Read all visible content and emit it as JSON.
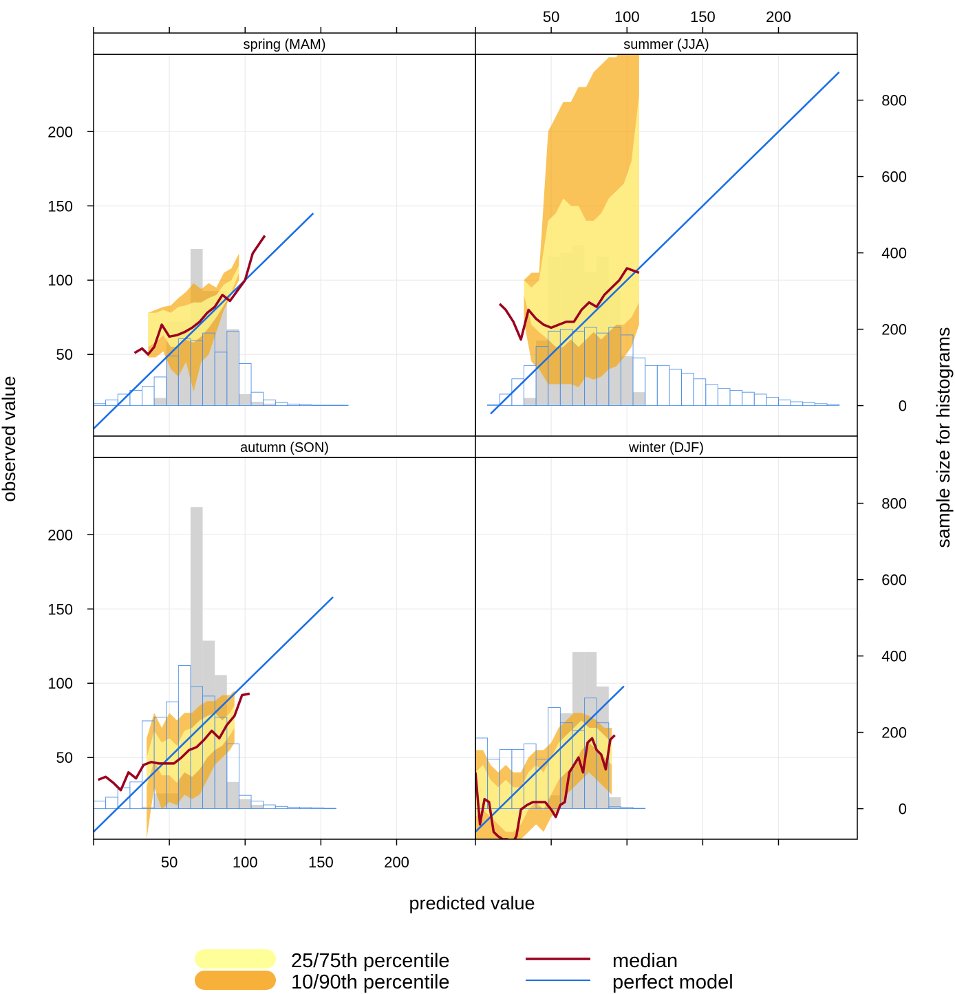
{
  "chart_data": {
    "type": "area",
    "xlabel": "predicted value",
    "ylabel": "observed value",
    "y2label": "sample size for histograms",
    "xlim": [
      0,
      252
    ],
    "ylim": [
      -5,
      252
    ],
    "y2lim": [
      -80,
      920
    ],
    "x_ticks": [
      50,
      100,
      150,
      200
    ],
    "y_ticks": [
      50,
      100,
      150,
      200
    ],
    "y2_ticks": [
      0,
      200,
      400,
      600,
      800
    ],
    "grid": true,
    "legend_position": "bottom",
    "colors": {
      "q25_75": "#ffff99",
      "q10_90": "#f7a300",
      "median": "#9b0020",
      "perfect_model": "#1a6fe6",
      "hist_observed": "#d3d3d3",
      "hist_predicted": "#4d8fe6"
    },
    "legend": [
      {
        "key": "q25_75",
        "label": "25/75th percentile"
      },
      {
        "key": "q10_90",
        "label": "10/90th percentile"
      },
      {
        "key": "median",
        "label": "median"
      },
      {
        "key": "perfect_model",
        "label": "perfect model"
      }
    ],
    "panels": [
      {
        "name": "spring (MAM)",
        "perfect_model": [
          0,
          145
        ],
        "bin_width": 8,
        "hist_observed": [
          [
            40,
            20
          ],
          [
            48,
            220
          ],
          [
            56,
            220
          ],
          [
            64,
            410
          ],
          [
            72,
            300
          ],
          [
            80,
            300
          ],
          [
            88,
            200
          ],
          [
            96,
            30
          ],
          [
            104,
            10
          ],
          [
            112,
            5
          ]
        ],
        "hist_predicted": [
          [
            0,
            5
          ],
          [
            8,
            15
          ],
          [
            16,
            30
          ],
          [
            24,
            40
          ],
          [
            32,
            50
          ],
          [
            40,
            75
          ],
          [
            48,
            130
          ],
          [
            56,
            175
          ],
          [
            64,
            170
          ],
          [
            72,
            190
          ],
          [
            80,
            140
          ],
          [
            88,
            195
          ],
          [
            96,
            110
          ],
          [
            104,
            35
          ],
          [
            112,
            15
          ],
          [
            120,
            8
          ],
          [
            128,
            4
          ],
          [
            136,
            2
          ],
          [
            144,
            1
          ],
          [
            152,
            1
          ],
          [
            160,
            1
          ],
          [
            168,
            0
          ],
          [
            176,
            0
          ],
          [
            184,
            0
          ],
          [
            192,
            0
          ],
          [
            200,
            0
          ],
          [
            208,
            0
          ],
          [
            216,
            0
          ],
          [
            224,
            0
          ],
          [
            232,
            0
          ]
        ],
        "bands": {
          "x": [
            36,
            41,
            46,
            51,
            56,
            61,
            66,
            71,
            76,
            81,
            86,
            91,
            96
          ],
          "q10": [
            48,
            48,
            52,
            40,
            35,
            45,
            25,
            45,
            50,
            65,
            80,
            90,
            100
          ],
          "q25": [
            55,
            58,
            63,
            55,
            55,
            60,
            58,
            62,
            68,
            75,
            83,
            92,
            105
          ],
          "q75": [
            78,
            78,
            80,
            78,
            82,
            83,
            85,
            85,
            88,
            90,
            97,
            100,
            110
          ],
          "q90": [
            78,
            80,
            82,
            83,
            88,
            92,
            98,
            94,
            98,
            95,
            105,
            108,
            118
          ]
        },
        "median": {
          "x": [
            27,
            32,
            36,
            40,
            45,
            50,
            55,
            60,
            65,
            70,
            75,
            80,
            85,
            90,
            95,
            100,
            105,
            113
          ],
          "y": [
            51,
            54,
            50,
            55,
            70,
            62,
            63,
            65,
            68,
            72,
            78,
            82,
            90,
            86,
            93,
            100,
            118,
            130
          ]
        }
      },
      {
        "name": "summer (JJA)",
        "perfect_model": [
          10,
          240
        ],
        "bin_width": 8,
        "hist_observed": [
          [
            32,
            20
          ],
          [
            40,
            170
          ],
          [
            48,
            390
          ],
          [
            56,
            400
          ],
          [
            64,
            420
          ],
          [
            72,
            350
          ],
          [
            80,
            390
          ],
          [
            88,
            300
          ],
          [
            96,
            130
          ],
          [
            104,
            35
          ]
        ],
        "hist_predicted": [
          [
            0,
            0
          ],
          [
            8,
            2
          ],
          [
            16,
            30
          ],
          [
            24,
            70
          ],
          [
            32,
            105
          ],
          [
            40,
            155
          ],
          [
            48,
            195
          ],
          [
            56,
            200
          ],
          [
            64,
            195
          ],
          [
            72,
            205
          ],
          [
            80,
            190
          ],
          [
            88,
            205
          ],
          [
            96,
            185
          ],
          [
            104,
            125
          ],
          [
            112,
            105
          ],
          [
            120,
            105
          ],
          [
            128,
            95
          ],
          [
            136,
            85
          ],
          [
            144,
            70
          ],
          [
            152,
            55
          ],
          [
            160,
            45
          ],
          [
            168,
            40
          ],
          [
            176,
            35
          ],
          [
            184,
            30
          ],
          [
            192,
            22
          ],
          [
            200,
            15
          ],
          [
            208,
            10
          ],
          [
            216,
            8
          ],
          [
            224,
            5
          ],
          [
            232,
            3
          ]
        ],
        "bands": {
          "x": [
            32,
            37,
            42,
            48,
            53,
            58,
            63,
            68,
            73,
            78,
            83,
            88,
            93,
            98,
            103,
            108
          ],
          "q10": [
            72,
            45,
            40,
            30,
            30,
            30,
            30,
            28,
            35,
            33,
            35,
            40,
            42,
            48,
            55,
            70
          ],
          "q25": [
            90,
            70,
            65,
            60,
            55,
            55,
            60,
            55,
            60,
            65,
            60,
            65,
            70,
            70,
            75,
            85
          ],
          "q75": [
            100,
            95,
            100,
            140,
            145,
            155,
            150,
            150,
            140,
            140,
            145,
            155,
            160,
            165,
            180,
            225
          ],
          "q90": [
            100,
            105,
            105,
            200,
            210,
            220,
            220,
            230,
            230,
            240,
            245,
            250,
            250,
            260,
            320,
            355
          ]
        },
        "median": {
          "x": [
            16,
            20,
            25,
            30,
            35,
            40,
            45,
            50,
            55,
            60,
            65,
            70,
            75,
            80,
            85,
            90,
            95,
            100,
            108
          ],
          "y": [
            84,
            80,
            72,
            60,
            80,
            74,
            70,
            68,
            70,
            72,
            72,
            80,
            85,
            82,
            90,
            95,
            100,
            108,
            105
          ]
        }
      },
      {
        "name": "autumn (SON)",
        "perfect_model": [
          0,
          158
        ],
        "bin_width": 8,
        "hist_observed": [
          [
            32,
            5
          ],
          [
            40,
            40
          ],
          [
            48,
            40
          ],
          [
            56,
            125
          ],
          [
            64,
            790
          ],
          [
            72,
            440
          ],
          [
            80,
            350
          ],
          [
            88,
            70
          ],
          [
            96,
            25
          ],
          [
            104,
            10
          ]
        ],
        "hist_predicted": [
          [
            0,
            20
          ],
          [
            8,
            30
          ],
          [
            16,
            55
          ],
          [
            24,
            70
          ],
          [
            32,
            230
          ],
          [
            40,
            240
          ],
          [
            48,
            280
          ],
          [
            56,
            375
          ],
          [
            64,
            320
          ],
          [
            72,
            295
          ],
          [
            80,
            240
          ],
          [
            88,
            170
          ],
          [
            96,
            35
          ],
          [
            104,
            20
          ],
          [
            112,
            10
          ],
          [
            120,
            6
          ],
          [
            128,
            4
          ],
          [
            136,
            3
          ],
          [
            144,
            2
          ],
          [
            152,
            1
          ],
          [
            160,
            0
          ],
          [
            168,
            0
          ],
          [
            176,
            0
          ],
          [
            184,
            0
          ],
          [
            192,
            0
          ],
          [
            200,
            0
          ],
          [
            208,
            0
          ],
          [
            216,
            0
          ],
          [
            224,
            0
          ],
          [
            232,
            0
          ]
        ],
        "bands": {
          "x": [
            35,
            40,
            45,
            50,
            55,
            60,
            65,
            70,
            75,
            80,
            85,
            90,
            93
          ],
          "q10": [
            -5,
            30,
            15,
            20,
            18,
            25,
            22,
            25,
            35,
            45,
            50,
            55,
            60
          ],
          "q25": [
            30,
            48,
            38,
            38,
            33,
            40,
            37,
            42,
            50,
            55,
            58,
            65,
            70
          ],
          "q75": [
            50,
            68,
            60,
            63,
            58,
            68,
            70,
            75,
            78,
            80,
            75,
            80,
            85
          ],
          "q90": [
            63,
            80,
            70,
            80,
            75,
            80,
            80,
            85,
            88,
            88,
            92,
            92,
            95
          ]
        },
        "median": {
          "x": [
            3,
            8,
            13,
            18,
            23,
            28,
            33,
            38,
            43,
            48,
            53,
            58,
            63,
            68,
            73,
            78,
            83,
            88,
            93,
            98,
            103
          ],
          "y": [
            35,
            37,
            33,
            28,
            40,
            36,
            45,
            47,
            46,
            46,
            46,
            50,
            55,
            57,
            62,
            68,
            63,
            72,
            78,
            92,
            93
          ]
        }
      },
      {
        "name": "winter (DJF)",
        "perfect_model": [
          0,
          98
        ],
        "bin_width": 8,
        "hist_observed": [
          [
            40,
            5
          ],
          [
            48,
            35
          ],
          [
            56,
            250
          ],
          [
            64,
            410
          ],
          [
            72,
            410
          ],
          [
            80,
            320
          ],
          [
            88,
            30
          ],
          [
            96,
            2
          ]
        ],
        "hist_predicted": [
          [
            0,
            185
          ],
          [
            8,
            130
          ],
          [
            16,
            155
          ],
          [
            24,
            155
          ],
          [
            32,
            170
          ],
          [
            40,
            130
          ],
          [
            48,
            265
          ],
          [
            56,
            225
          ],
          [
            64,
            205
          ],
          [
            72,
            290
          ],
          [
            80,
            225
          ],
          [
            88,
            5
          ],
          [
            96,
            3
          ],
          [
            104,
            1
          ],
          [
            112,
            0
          ],
          [
            120,
            0
          ],
          [
            128,
            0
          ],
          [
            136,
            0
          ],
          [
            144,
            0
          ],
          [
            152,
            0
          ],
          [
            160,
            0
          ],
          [
            168,
            0
          ],
          [
            176,
            0
          ],
          [
            184,
            0
          ],
          [
            192,
            0
          ],
          [
            200,
            0
          ],
          [
            208,
            0
          ],
          [
            216,
            0
          ],
          [
            224,
            0
          ],
          [
            232,
            0
          ]
        ],
        "bands": {
          "x": [
            0,
            5,
            10,
            15,
            20,
            25,
            30,
            35,
            40,
            45,
            50,
            55,
            60,
            65,
            70,
            75,
            80,
            85,
            90
          ],
          "q10": [
            -5,
            -5,
            -5,
            -5,
            -5,
            -5,
            -5,
            0,
            5,
            0,
            10,
            15,
            25,
            30,
            35,
            40,
            35,
            30,
            25
          ],
          "q25": [
            10,
            15,
            10,
            5,
            0,
            0,
            5,
            15,
            20,
            15,
            25,
            35,
            40,
            45,
            55,
            60,
            55,
            50,
            45
          ],
          "q75": [
            40,
            45,
            35,
            30,
            35,
            30,
            30,
            40,
            45,
            40,
            50,
            60,
            65,
            70,
            75,
            70,
            70,
            65,
            60
          ],
          "q90": [
            55,
            55,
            45,
            40,
            45,
            40,
            40,
            50,
            55,
            55,
            60,
            70,
            75,
            80,
            80,
            78,
            75,
            70,
            70
          ]
        },
        "median": {
          "x": [
            0,
            3,
            6,
            9,
            12,
            15,
            18,
            21,
            24,
            27,
            30,
            34,
            38,
            42,
            46,
            50,
            53,
            56,
            59,
            62,
            65,
            68,
            71,
            74,
            77,
            80,
            83,
            86,
            89,
            92
          ],
          "y": [
            40,
            5,
            22,
            20,
            0,
            -3,
            -5,
            -5,
            -8,
            -3,
            15,
            18,
            20,
            20,
            20,
            15,
            10,
            18,
            20,
            40,
            45,
            50,
            40,
            60,
            63,
            55,
            52,
            42,
            62,
            65
          ]
        }
      }
    ]
  }
}
